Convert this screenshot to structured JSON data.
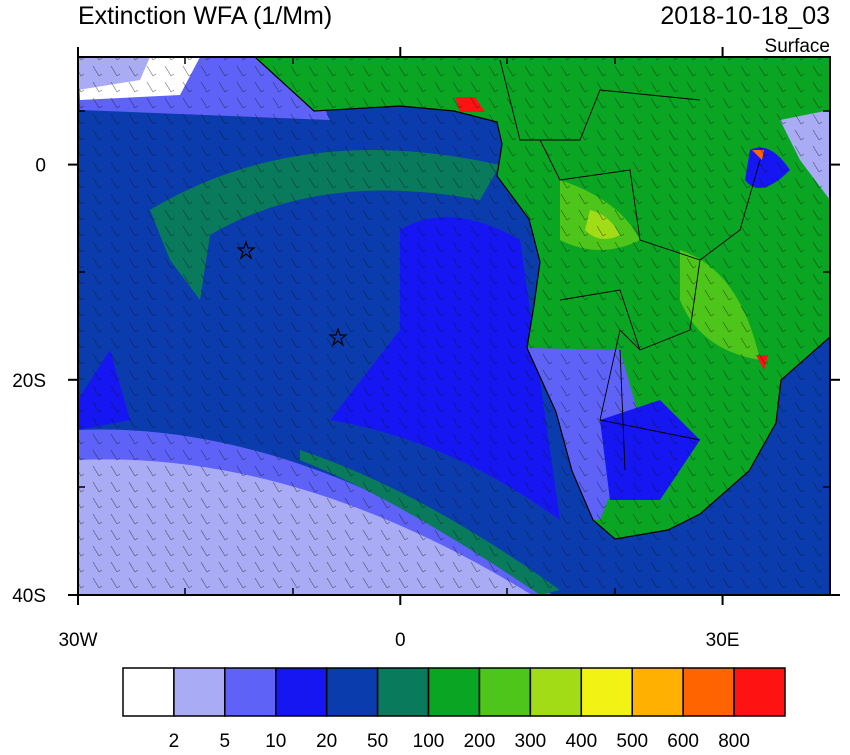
{
  "header": {
    "title": "Extinction WFA (1/Mm)",
    "date": "2018-10-18_03",
    "level": "Surface"
  },
  "map": {
    "xlim": [
      -30,
      40
    ],
    "ylim": [
      -40,
      10
    ],
    "xticks": [
      {
        "value": -30,
        "label": "30W"
      },
      0,
      {
        "value": 30,
        "label": "30E"
      }
    ],
    "yticks": [
      0,
      {
        "value": -20,
        "label": "20S"
      },
      {
        "value": -40,
        "label": "40S"
      }
    ]
  },
  "colorbar": {
    "levels": [
      2,
      5,
      10,
      20,
      50,
      100,
      200,
      300,
      400,
      500,
      600,
      800
    ],
    "colors": [
      "#ffffff",
      "#a9acf5",
      "#5e62f7",
      "#1616f2",
      "#0b3cae",
      "#0a7a5c",
      "#0aa523",
      "#4ec51a",
      "#a2dc16",
      "#f2f214",
      "#ffb000",
      "#ff6400",
      "#ff1212"
    ]
  }
}
